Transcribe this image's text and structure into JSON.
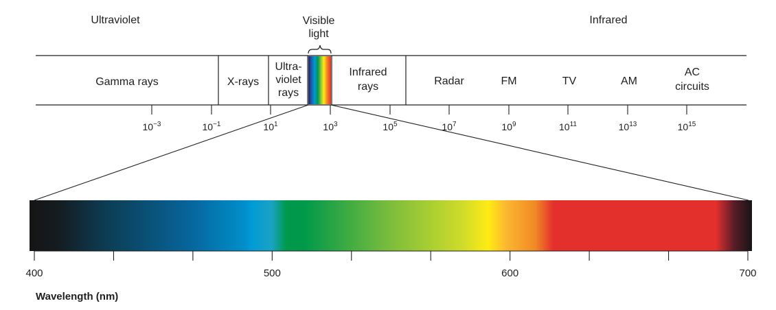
{
  "header": {
    "ultraviolet": "Ultraviolet",
    "visible_line1": "Visible",
    "visible_line2": "light",
    "infrared": "Infrared"
  },
  "bands": {
    "gamma": [
      "Gamma rays"
    ],
    "xrays": [
      "X-rays"
    ],
    "uv": [
      "Ultra-",
      "violet",
      "rays"
    ],
    "ir": [
      "Infrared",
      "rays"
    ],
    "radar": [
      "Radar"
    ],
    "fm": [
      "FM"
    ],
    "tv": [
      "TV"
    ],
    "am": [
      "AM"
    ],
    "ac": [
      "AC",
      "circuits"
    ]
  },
  "scale_ticks": [
    {
      "base": "10",
      "exp": "−3"
    },
    {
      "base": "10",
      "exp": "−1"
    },
    {
      "base": "10",
      "exp": "1"
    },
    {
      "base": "10",
      "exp": "3"
    },
    {
      "base": "10",
      "exp": "5"
    },
    {
      "base": "10",
      "exp": "7"
    },
    {
      "base": "10",
      "exp": "9"
    },
    {
      "base": "10",
      "exp": "11"
    },
    {
      "base": "10",
      "exp": "13"
    },
    {
      "base": "10",
      "exp": "15"
    }
  ],
  "wavelength_axis": {
    "title": "Wavelength (nm)",
    "min": 400,
    "max": 700,
    "labels": [
      "400",
      "500",
      "600",
      "700"
    ]
  },
  "colors": {
    "line": "#1e1e1e",
    "violet": "#5a2d82",
    "blue": "#0099d6",
    "green": "#00994d",
    "yellow": "#ffeb14",
    "orange": "#f08a24",
    "red": "#e4302d",
    "dark_end": "#1a1a1a"
  }
}
